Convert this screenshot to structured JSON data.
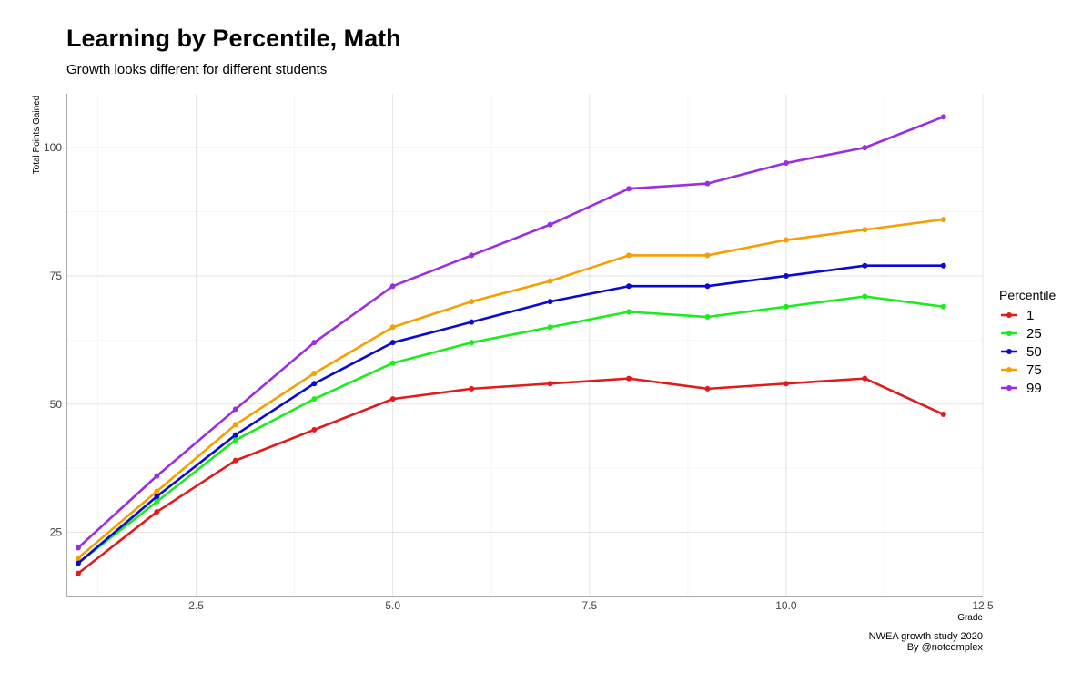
{
  "chart_data": {
    "type": "line",
    "title": "Learning by Percentile, Math",
    "subtitle": "Growth looks different for different students",
    "xlabel": "Grade",
    "ylabel": "Total Points Gained",
    "xlim": [
      0.85,
      12.5
    ],
    "ylim": [
      12.5,
      110.5
    ],
    "xticks": [
      2.5,
      5.0,
      7.5,
      10.0,
      12.5
    ],
    "xtick_labels": [
      "2.5",
      "5.0",
      "7.5",
      "10.0",
      "12.5"
    ],
    "yticks": [
      25,
      50,
      75,
      100
    ],
    "ytick_labels": [
      "25",
      "50",
      "75",
      "100"
    ],
    "grid": true,
    "legend_title": "Percentile",
    "legend_position": "right",
    "x": [
      1,
      2,
      3,
      4,
      5,
      6,
      7,
      8,
      9,
      10,
      11,
      12
    ],
    "series": [
      {
        "name": "1",
        "color": "#e31a1c",
        "values": [
          17,
          29,
          39,
          45,
          51,
          53,
          54,
          55,
          53,
          54,
          55,
          48
        ]
      },
      {
        "name": "25",
        "color": "#1aee1a",
        "values": [
          19,
          31,
          43,
          51,
          58,
          62,
          65,
          68,
          67,
          69,
          71,
          69
        ]
      },
      {
        "name": "50",
        "color": "#0a0ad4",
        "values": [
          19,
          32,
          44,
          54,
          62,
          66,
          70,
          73,
          73,
          75,
          77,
          77
        ]
      },
      {
        "name": "75",
        "color": "#f5a000",
        "values": [
          20,
          33,
          46,
          56,
          65,
          70,
          74,
          79,
          79,
          82,
          84,
          86
        ]
      },
      {
        "name": "99",
        "color": "#9b2fe0",
        "values": [
          22,
          36,
          49,
          62,
          73,
          79,
          85,
          92,
          93,
          97,
          100,
          106
        ]
      }
    ],
    "caption": [
      "NWEA growth study 2020",
      "By @notcomplex"
    ]
  }
}
